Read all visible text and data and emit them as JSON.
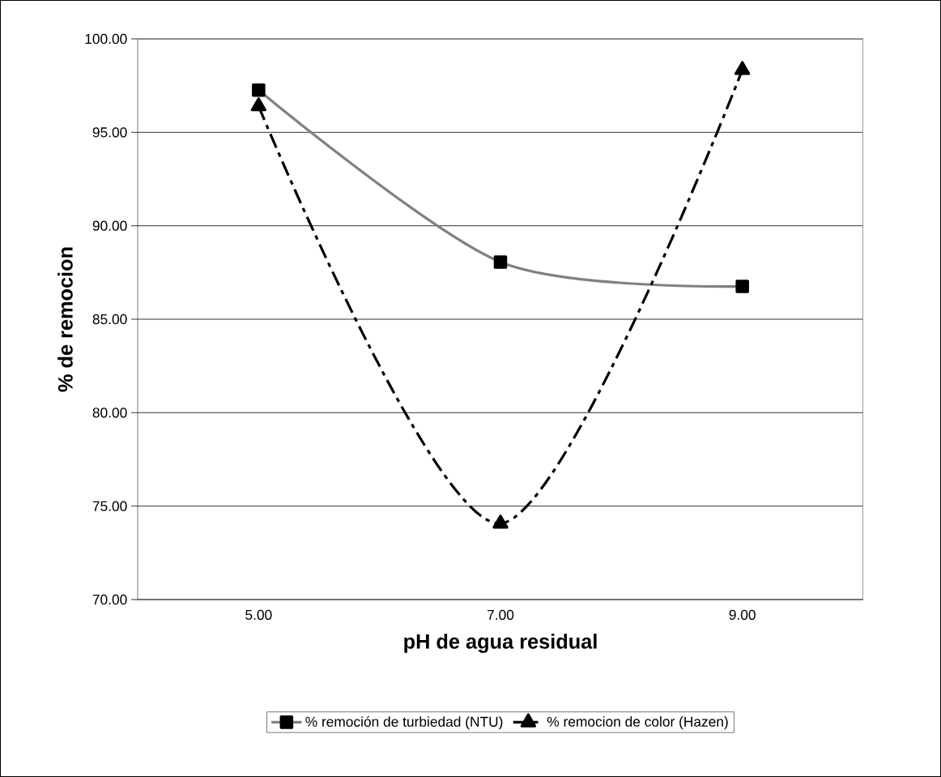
{
  "chart_data": {
    "type": "line",
    "xlabel": "pH de agua residual",
    "ylabel": "% de remocion",
    "categories": [
      "5.00",
      "7.00",
      "9.00"
    ],
    "series": [
      {
        "name": "% remoción de turbiedad (NTU)",
        "color": "#808080",
        "values": [
          97.26,
          88.06,
          86.76
        ],
        "marker": "square",
        "line_style": "solid"
      },
      {
        "name": "% remocion de color (Hazen)",
        "color": "#000000",
        "values": [
          96.4,
          74.07,
          98.34
        ],
        "marker": "triangle",
        "line_style": "dashed"
      }
    ],
    "ylim": [
      70,
      100
    ],
    "yticks": [
      {
        "value": 70,
        "label": "70.00"
      },
      {
        "value": 75,
        "label": "75.00"
      },
      {
        "value": 80,
        "label": "80.00"
      },
      {
        "value": 85,
        "label": "85.00"
      },
      {
        "value": 90,
        "label": "90.00"
      },
      {
        "value": 95,
        "label": "95.00"
      },
      {
        "value": 100,
        "label": "100.00"
      }
    ],
    "grid": "y",
    "legend": "bottom"
  }
}
